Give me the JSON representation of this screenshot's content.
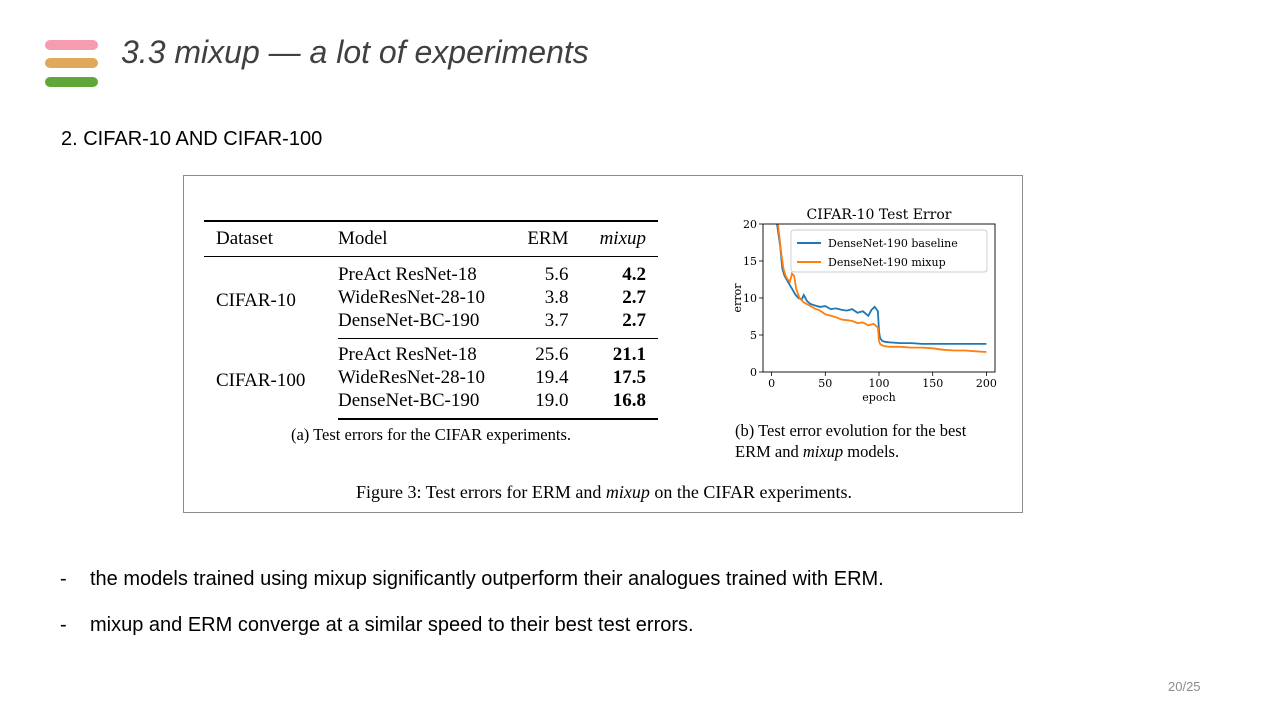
{
  "slide": {
    "title": "3.3 mixup —  a lot of experiments",
    "accent_colors": [
      "#f79bb0",
      "#e0a85a",
      "#5ea838"
    ],
    "subtitle": "2. CIFAR-10 AND CIFAR-100",
    "page_number": "20/25"
  },
  "figure": {
    "table": {
      "headers": [
        "Dataset",
        "Model",
        "ERM",
        "mixup"
      ],
      "groups": [
        {
          "dataset": "CIFAR-10",
          "rows": [
            {
              "model": "PreAct ResNet-18",
              "erm": "5.6",
              "mixup": "4.2"
            },
            {
              "model": "WideResNet-28-10",
              "erm": "3.8",
              "mixup": "2.7"
            },
            {
              "model": "DenseNet-BC-190",
              "erm": "3.7",
              "mixup": "2.7"
            }
          ]
        },
        {
          "dataset": "CIFAR-100",
          "rows": [
            {
              "model": "PreAct ResNet-18",
              "erm": "25.6",
              "mixup": "21.1"
            },
            {
              "model": "WideResNet-28-10",
              "erm": "19.4",
              "mixup": "17.5"
            },
            {
              "model": "DenseNet-BC-190",
              "erm": "19.0",
              "mixup": "16.8"
            }
          ]
        }
      ]
    },
    "caption_a": "(a) Test errors for the CIFAR experiments.",
    "caption_b_line1": "(b) Test error evolution for the best",
    "caption_b_line2_pre": "ERM and ",
    "caption_b_line2_em": "mixup",
    "caption_b_line2_post": " models.",
    "caption_main_pre": "Figure 3: Test errors for ERM and ",
    "caption_main_em": "mixup",
    "caption_main_post": " on the CIFAR experiments."
  },
  "chart_data": {
    "type": "line",
    "title": "CIFAR-10 Test Error",
    "xlabel": "epoch",
    "ylabel": "error",
    "xlim": [
      -8,
      208
    ],
    "ylim": [
      0,
      20
    ],
    "xticks": [
      0,
      50,
      100,
      150,
      200
    ],
    "yticks": [
      0,
      5,
      10,
      15,
      20
    ],
    "legend_position": "top-right",
    "series": [
      {
        "name": "DenseNet-190 baseline",
        "color": "#1f77b4",
        "x": [
          5,
          8,
          10,
          12,
          14,
          16,
          18,
          20,
          22,
          25,
          28,
          30,
          33,
          36,
          40,
          45,
          50,
          55,
          60,
          65,
          70,
          75,
          80,
          85,
          90,
          93,
          96,
          99,
          100,
          101,
          103,
          105,
          110,
          120,
          130,
          140,
          150,
          160,
          170,
          180,
          190,
          200
        ],
        "y": [
          20,
          17,
          14,
          13,
          12.5,
          12,
          11.5,
          11,
          10.5,
          10,
          9.8,
          10.4,
          9.6,
          9.2,
          9.0,
          8.8,
          8.9,
          8.5,
          8.6,
          8.4,
          8.3,
          8.5,
          8.0,
          8.2,
          7.6,
          8.4,
          8.8,
          8.2,
          5.5,
          4.6,
          4.2,
          4.1,
          4.0,
          3.9,
          3.9,
          3.8,
          3.8,
          3.8,
          3.8,
          3.8,
          3.8,
          3.8
        ]
      },
      {
        "name": "DenseNet-190 mixup",
        "color": "#ff7f0e",
        "x": [
          6,
          9,
          11,
          13,
          15,
          17,
          19,
          21,
          23,
          26,
          30,
          35,
          40,
          45,
          50,
          55,
          60,
          65,
          70,
          75,
          80,
          85,
          90,
          95,
          99,
          100,
          101,
          103,
          105,
          110,
          120,
          130,
          140,
          150,
          160,
          170,
          180,
          190,
          200
        ],
        "y": [
          20,
          16,
          14,
          13,
          12.5,
          12.2,
          13.3,
          13.0,
          11.2,
          10.0,
          9.4,
          9.0,
          8.6,
          8.3,
          7.8,
          7.6,
          7.4,
          7.1,
          7.0,
          6.9,
          6.6,
          6.7,
          6.3,
          6.5,
          6.0,
          4.2,
          3.8,
          3.6,
          3.5,
          3.4,
          3.4,
          3.3,
          3.3,
          3.2,
          3.0,
          2.9,
          2.9,
          2.8,
          2.7
        ]
      }
    ]
  },
  "bullets": [
    {
      "dash": "-",
      "text": "the models trained using mixup significantly outperform their analogues trained with ERM."
    },
    {
      "dash": "-",
      "text": "mixup and ERM converge at a similar speed to their best test errors."
    }
  ]
}
